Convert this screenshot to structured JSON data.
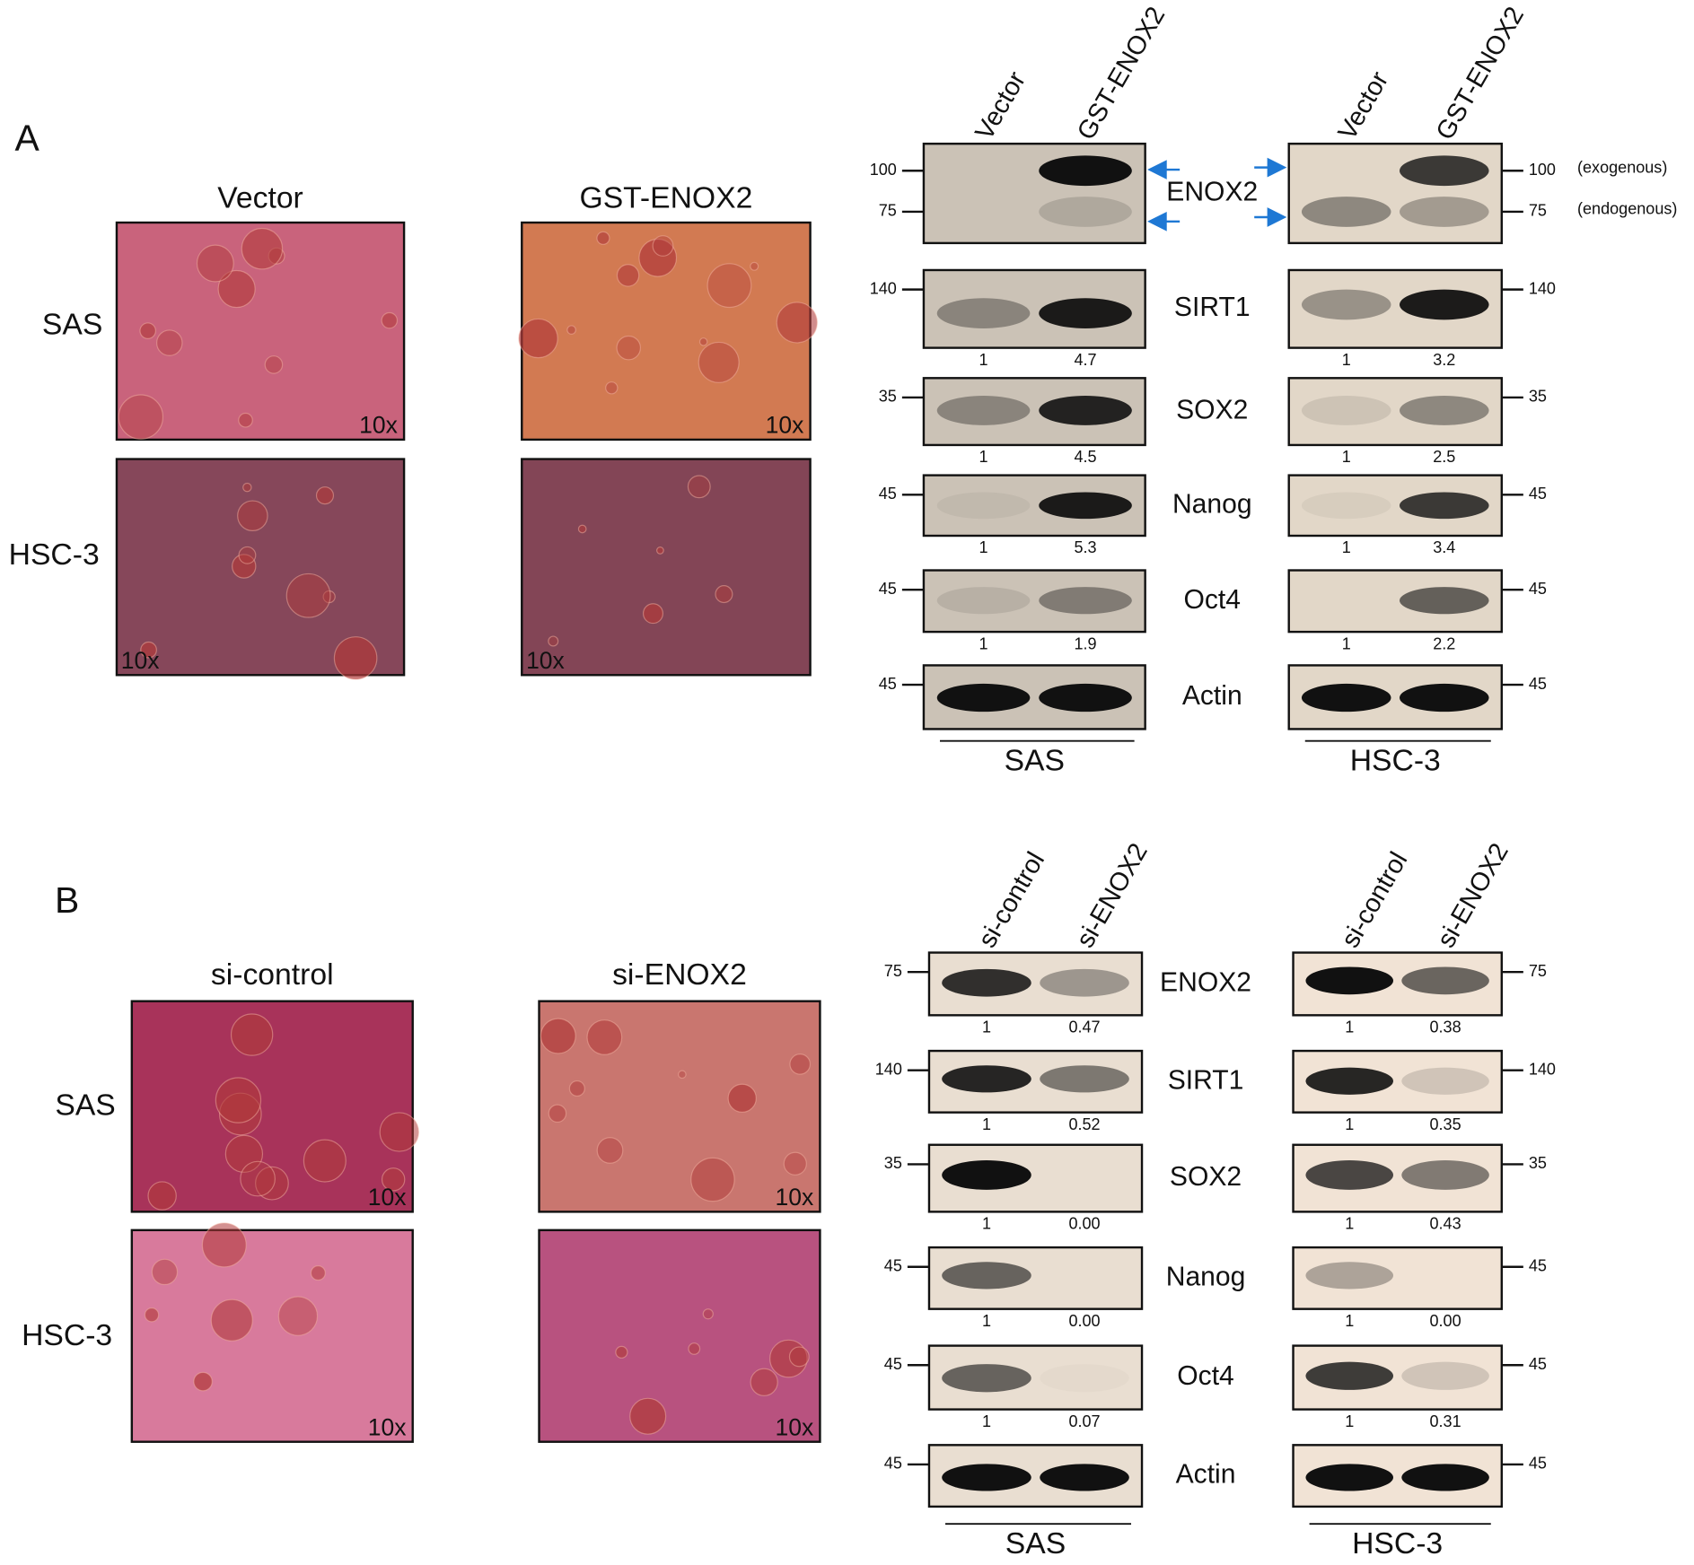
{
  "panels": [
    {
      "label": "A",
      "micrographs": {
        "columns": [
          "Vector",
          "GST-ENOX2"
        ],
        "rows": [
          "SAS",
          "HSC-3"
        ],
        "magnification": "10x"
      },
      "blots": {
        "lanes": [
          "Vector",
          "GST-ENOX2"
        ],
        "proteins": [
          "ENOX2",
          "SIRT1",
          "SOX2",
          "Nanog",
          "Oct4",
          "Actin"
        ],
        "annotations": [
          "(exogenous)",
          "(endogenous)"
        ],
        "cell_lines": [
          {
            "name": "SAS",
            "rows": [
              {
                "markers": [
                  "100",
                  "75"
                ]
              },
              {
                "markers": [
                  "140"
                ],
                "quant": [
                  "1",
                  "4.7"
                ]
              },
              {
                "markers": [
                  "35"
                ],
                "quant": [
                  "1",
                  "4.5"
                ]
              },
              {
                "markers": [
                  "45"
                ],
                "quant": [
                  "1",
                  "5.3"
                ]
              },
              {
                "markers": [
                  "45"
                ],
                "quant": [
                  "1",
                  "1.9"
                ]
              },
              {
                "markers": [
                  "45"
                ]
              }
            ]
          },
          {
            "name": "HSC-3",
            "rows": [
              {
                "markers": [
                  "100",
                  "75"
                ]
              },
              {
                "markers": [
                  "140"
                ],
                "quant": [
                  "1",
                  "3.2"
                ]
              },
              {
                "markers": [
                  "35"
                ],
                "quant": [
                  "1",
                  "2.5"
                ]
              },
              {
                "markers": [
                  "45"
                ],
                "quant": [
                  "1",
                  "3.4"
                ]
              },
              {
                "markers": [
                  "45"
                ],
                "quant": [
                  "1",
                  "2.2"
                ]
              },
              {
                "markers": [
                  "45"
                ]
              }
            ]
          }
        ]
      }
    },
    {
      "label": "B",
      "micrographs": {
        "columns": [
          "si-control",
          "si-ENOX2"
        ],
        "rows": [
          "SAS",
          "HSC-3"
        ],
        "magnification": "10x"
      },
      "blots": {
        "lanes": [
          "si-control",
          "si-ENOX2"
        ],
        "proteins": [
          "ENOX2",
          "SIRT1",
          "SOX2",
          "Nanog",
          "Oct4",
          "Actin"
        ],
        "cell_lines": [
          {
            "name": "SAS",
            "rows": [
              {
                "markers": [
                  "75"
                ],
                "quant": [
                  "1",
                  "0.47"
                ]
              },
              {
                "markers": [
                  "140"
                ],
                "quant": [
                  "1",
                  "0.52"
                ]
              },
              {
                "markers": [
                  "35"
                ],
                "quant": [
                  "1",
                  "0.00"
                ]
              },
              {
                "markers": [
                  "45"
                ],
                "quant": [
                  "1",
                  "0.00"
                ]
              },
              {
                "markers": [
                  "45"
                ],
                "quant": [
                  "1",
                  "0.07"
                ]
              },
              {
                "markers": [
                  "45"
                ]
              }
            ]
          },
          {
            "name": "HSC-3",
            "rows": [
              {
                "markers": [
                  "75"
                ],
                "quant": [
                  "1",
                  "0.38"
                ]
              },
              {
                "markers": [
                  "140"
                ],
                "quant": [
                  "1",
                  "0.35"
                ]
              },
              {
                "markers": [
                  "35"
                ],
                "quant": [
                  "1",
                  "0.43"
                ]
              },
              {
                "markers": [
                  "45"
                ],
                "quant": [
                  "1",
                  "0.00"
                ]
              },
              {
                "markers": [
                  "45"
                ],
                "quant": [
                  "1",
                  "0.31"
                ]
              },
              {
                "markers": [
                  "45"
                ]
              }
            ]
          }
        ]
      }
    }
  ]
}
